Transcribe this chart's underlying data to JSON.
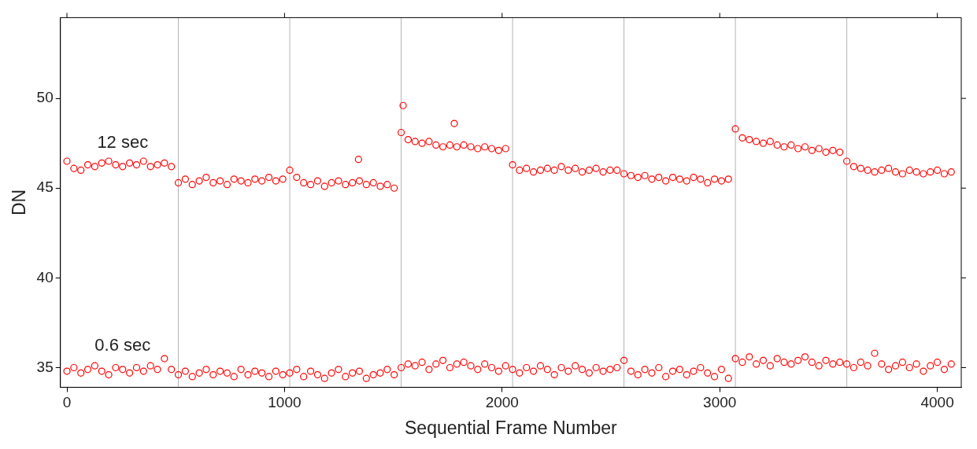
{
  "chart_data": {
    "type": "scatter",
    "xlabel": "Sequential Frame Number",
    "ylabel": "DN",
    "xlim": [
      -30,
      4110
    ],
    "ylim": [
      33.9,
      54.5
    ],
    "xticks": [
      0,
      1000,
      2000,
      3000,
      4000
    ],
    "yticks": [
      35,
      40,
      45,
      50
    ],
    "grid": false,
    "legend": false,
    "marker": "circle",
    "x": [
      0,
      32,
      64,
      96,
      128,
      160,
      192,
      224,
      256,
      288,
      320,
      352,
      384,
      416,
      448,
      480,
      512,
      544,
      576,
      608,
      640,
      672,
      704,
      736,
      768,
      800,
      832,
      864,
      896,
      928,
      960,
      992,
      1024,
      1056,
      1088,
      1120,
      1152,
      1184,
      1216,
      1248,
      1280,
      1312,
      1344,
      1376,
      1408,
      1440,
      1472,
      1504,
      1536,
      1568,
      1600,
      1632,
      1664,
      1696,
      1728,
      1760,
      1792,
      1824,
      1856,
      1888,
      1920,
      1952,
      1984,
      2016,
      2048,
      2080,
      2112,
      2144,
      2176,
      2208,
      2240,
      2272,
      2304,
      2336,
      2368,
      2400,
      2432,
      2464,
      2496,
      2528,
      2560,
      2592,
      2624,
      2656,
      2688,
      2720,
      2752,
      2784,
      2816,
      2848,
      2880,
      2912,
      2944,
      2976,
      3008,
      3040,
      3072,
      3104,
      3136,
      3168,
      3200,
      3232,
      3264,
      3296,
      3328,
      3360,
      3392,
      3424,
      3456,
      3488,
      3520,
      3552,
      3584,
      3616,
      3648,
      3680,
      3712,
      3744,
      3776,
      3808,
      3840,
      3872,
      3904,
      3936,
      3968,
      4000,
      4032,
      4064
    ],
    "series": [
      {
        "name": "12 sec",
        "color": "#ff0000",
        "values": [
          46.5,
          46.1,
          46.0,
          46.3,
          46.2,
          46.4,
          46.5,
          46.3,
          46.2,
          46.4,
          46.3,
          46.5,
          46.2,
          46.3,
          46.4,
          46.2,
          45.3,
          45.5,
          45.2,
          45.4,
          45.6,
          45.3,
          45.4,
          45.2,
          45.5,
          45.4,
          45.3,
          45.5,
          45.4,
          45.6,
          45.4,
          45.5,
          46.0,
          45.6,
          45.3,
          45.2,
          45.4,
          45.1,
          45.3,
          45.4,
          45.2,
          45.3,
          45.4,
          45.2,
          45.3,
          45.1,
          45.2,
          45.0,
          48.1,
          47.7,
          47.6,
          47.5,
          47.6,
          47.4,
          47.3,
          47.4,
          47.3,
          47.4,
          47.3,
          47.2,
          47.3,
          47.2,
          47.1,
          47.2,
          46.3,
          46.0,
          46.1,
          45.9,
          46.0,
          46.1,
          46.0,
          46.2,
          46.0,
          46.1,
          45.9,
          46.0,
          46.1,
          45.9,
          46.0,
          46.0,
          45.8,
          45.7,
          45.6,
          45.7,
          45.5,
          45.6,
          45.4,
          45.6,
          45.5,
          45.4,
          45.6,
          45.5,
          45.3,
          45.5,
          45.4,
          45.5,
          48.3,
          47.8,
          47.7,
          47.6,
          47.5,
          47.6,
          47.4,
          47.3,
          47.4,
          47.2,
          47.3,
          47.1,
          47.2,
          47.0,
          47.1,
          47.0,
          46.5,
          46.2,
          46.1,
          46.0,
          45.9,
          46.0,
          46.1,
          45.9,
          45.8,
          46.0,
          45.9,
          45.8,
          45.9,
          46.0,
          45.8,
          45.9
        ]
      },
      {
        "color": "#ff0000",
        "x": [
          1340,
          1545,
          1780
        ],
        "values": [
          46.6,
          49.6,
          48.6
        ]
      },
      {
        "name": "0.6 sec",
        "color": "#ff0000",
        "values": [
          34.8,
          35.0,
          34.7,
          34.9,
          35.1,
          34.8,
          34.6,
          35.0,
          34.9,
          34.7,
          35.0,
          34.8,
          35.1,
          34.9,
          35.5,
          34.9,
          34.6,
          34.8,
          34.5,
          34.7,
          34.9,
          34.6,
          34.8,
          34.7,
          34.5,
          34.9,
          34.6,
          34.8,
          34.7,
          34.5,
          34.8,
          34.6,
          34.7,
          34.9,
          34.5,
          34.8,
          34.6,
          34.4,
          34.7,
          34.9,
          34.5,
          34.7,
          34.8,
          34.4,
          34.6,
          34.7,
          34.9,
          34.6,
          35.0,
          35.2,
          35.1,
          35.3,
          34.9,
          35.2,
          35.4,
          35.0,
          35.2,
          35.3,
          35.1,
          34.9,
          35.2,
          35.0,
          34.8,
          35.1,
          34.9,
          34.7,
          35.0,
          34.8,
          35.1,
          34.9,
          34.6,
          35.0,
          34.8,
          35.1,
          34.9,
          34.7,
          35.0,
          34.8,
          34.9,
          35.0,
          35.4,
          34.8,
          34.6,
          34.9,
          34.7,
          35.0,
          34.5,
          34.8,
          34.9,
          34.6,
          34.8,
          35.0,
          34.7,
          34.5,
          34.9,
          34.4,
          35.5,
          35.3,
          35.6,
          35.2,
          35.4,
          35.1,
          35.5,
          35.3,
          35.2,
          35.4,
          35.6,
          35.3,
          35.1,
          35.4,
          35.2,
          35.3,
          35.2,
          35.0,
          35.3,
          35.1,
          35.8,
          35.2,
          34.9,
          35.1,
          35.3,
          35.0,
          35.2,
          34.8,
          35.1,
          35.3,
          34.9,
          35.2
        ]
      }
    ],
    "ref_lines": [
      {
        "axis": "x",
        "value": 512,
        "color": "#b4b4b4"
      },
      {
        "axis": "x",
        "value": 1024,
        "color": "#b4b4b4"
      },
      {
        "axis": "x",
        "value": 1536,
        "color": "#b4b4b4"
      },
      {
        "axis": "x",
        "value": 2048,
        "color": "#b4b4b4"
      },
      {
        "axis": "x",
        "value": 2560,
        "color": "#b4b4b4"
      },
      {
        "axis": "x",
        "value": 3072,
        "color": "#b4b4b4"
      },
      {
        "axis": "x",
        "value": 3584,
        "color": "#b4b4b4"
      }
    ]
  }
}
